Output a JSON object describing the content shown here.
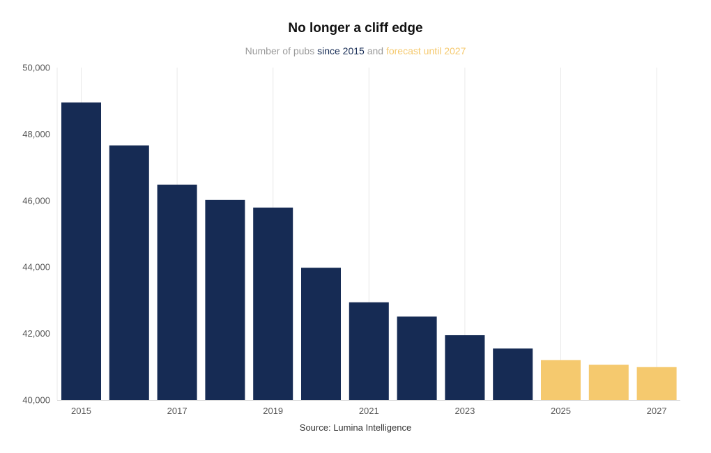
{
  "chart_data": {
    "type": "bar",
    "title": "No longer a cliff edge",
    "subtitle": {
      "prefix": "Number of pubs ",
      "actual_label": "since 2015",
      "connector": " and ",
      "forecast_label": "forecast until 2027"
    },
    "categories": [
      "2015",
      "2016",
      "2017",
      "2018",
      "2019",
      "2020",
      "2021",
      "2022",
      "2023",
      "2024",
      "2025",
      "2026",
      "2027"
    ],
    "values": [
      48950,
      47660,
      46480,
      46020,
      45790,
      43980,
      42940,
      42510,
      41950,
      41550,
      41200,
      41060,
      40990
    ],
    "forecast": [
      false,
      false,
      false,
      false,
      false,
      false,
      false,
      false,
      false,
      false,
      true,
      true,
      true
    ],
    "x_tick_labels": [
      "2015",
      "2017",
      "2019",
      "2021",
      "2023",
      "2025",
      "2027"
    ],
    "y_ticks": [
      40000,
      42000,
      44000,
      46000,
      48000,
      50000
    ],
    "y_tick_labels": [
      "40,000",
      "42,000",
      "44,000",
      "46,000",
      "48,000",
      "50,000"
    ],
    "ylim": [
      40000,
      50000
    ],
    "xlabel": "",
    "ylabel": "",
    "colors": {
      "actual": "#162b54",
      "forecast": "#f5c96e",
      "grid": "#e8e8e8"
    },
    "source": "Source: Lumina Intelligence"
  }
}
